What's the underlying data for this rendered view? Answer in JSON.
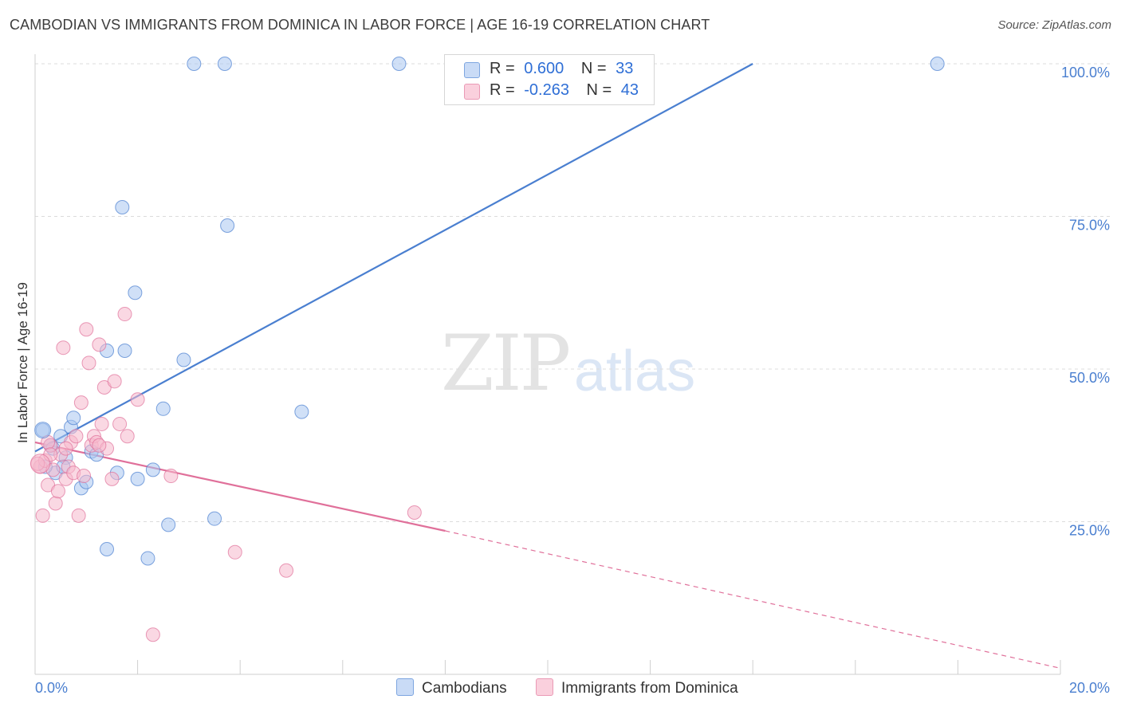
{
  "title": "CAMBODIAN VS IMMIGRANTS FROM DOMINICA IN LABOR FORCE | AGE 16-19 CORRELATION CHART",
  "source": "Source: ZipAtlas.com",
  "watermark": {
    "zip": "ZIP",
    "atlas": "atlas"
  },
  "legend": {
    "rows": [
      {
        "r_label": "R =",
        "r_value": "0.600",
        "n_label": "N =",
        "n_value": "33",
        "color": "#a9c6f0"
      },
      {
        "r_label": "R =",
        "r_value": "-0.263",
        "n_label": "N =",
        "n_value": "43",
        "color": "#f5b8cc"
      }
    ]
  },
  "bottom_legend": [
    "Cambodians",
    "Immigrants from Dominica"
  ],
  "chart_data": {
    "type": "scatter",
    "ylabel": "In Labor Force | Age 16-19",
    "xlim": [
      0,
      20
    ],
    "ylim": [
      0,
      100
    ],
    "x_ticks": [
      "0.0%",
      "20.0%"
    ],
    "y_ticks": [
      "25.0%",
      "50.0%",
      "75.0%",
      "100.0%"
    ],
    "y_tick_values": [
      25,
      50,
      75,
      100
    ],
    "series": [
      {
        "name": "Cambodians",
        "color": "#4a7fd0",
        "fill": "#a9c6f0",
        "points": [
          [
            0.15,
            40.0
          ],
          [
            0.3,
            37.5
          ],
          [
            0.35,
            37.0
          ],
          [
            0.4,
            33.0
          ],
          [
            0.5,
            39.0
          ],
          [
            0.6,
            35.5
          ],
          [
            0.7,
            40.5
          ],
          [
            0.75,
            42.0
          ],
          [
            0.9,
            30.5
          ],
          [
            1.0,
            31.5
          ],
          [
            1.1,
            36.5
          ],
          [
            1.2,
            36.0
          ],
          [
            1.4,
            20.5
          ],
          [
            1.4,
            53.0
          ],
          [
            1.6,
            33.0
          ],
          [
            1.7,
            76.5
          ],
          [
            1.75,
            53.0
          ],
          [
            1.95,
            62.5
          ],
          [
            2.0,
            32.0
          ],
          [
            2.2,
            19.0
          ],
          [
            2.3,
            33.5
          ],
          [
            2.5,
            43.5
          ],
          [
            2.6,
            24.5
          ],
          [
            2.9,
            51.5
          ],
          [
            3.1,
            100
          ],
          [
            3.5,
            25.5
          ],
          [
            3.7,
            100
          ],
          [
            3.75,
            73.5
          ],
          [
            5.2,
            43.0
          ],
          [
            7.1,
            100
          ],
          [
            17.6,
            100
          ],
          [
            0.2,
            34.0
          ],
          [
            0.55,
            34.0
          ]
        ],
        "trend": {
          "x0": 0,
          "y0": 36.5,
          "x1": 14.0,
          "y1": 100
        }
      },
      {
        "name": "Immigrants from Dominica",
        "color": "#e0709a",
        "fill": "#f5b8cc",
        "points": [
          [
            0.1,
            34.0
          ],
          [
            0.15,
            26.0
          ],
          [
            0.2,
            35.0
          ],
          [
            0.25,
            31.0
          ],
          [
            0.3,
            37.5
          ],
          [
            0.35,
            33.5
          ],
          [
            0.4,
            28.0
          ],
          [
            0.45,
            30.0
          ],
          [
            0.5,
            36.0
          ],
          [
            0.55,
            53.5
          ],
          [
            0.6,
            32.0
          ],
          [
            0.65,
            34.0
          ],
          [
            0.7,
            38.0
          ],
          [
            0.75,
            33.0
          ],
          [
            0.8,
            39.0
          ],
          [
            0.85,
            26.0
          ],
          [
            0.9,
            44.5
          ],
          [
            0.95,
            32.5
          ],
          [
            1.0,
            56.5
          ],
          [
            1.05,
            51.0
          ],
          [
            1.1,
            37.5
          ],
          [
            1.15,
            39.0
          ],
          [
            1.2,
            38.0
          ],
          [
            1.25,
            54.0
          ],
          [
            1.3,
            41.0
          ],
          [
            1.35,
            47.0
          ],
          [
            1.4,
            37.0
          ],
          [
            1.5,
            32.0
          ],
          [
            1.55,
            48.0
          ],
          [
            1.65,
            41.0
          ],
          [
            1.75,
            59.0
          ],
          [
            1.8,
            39.0
          ],
          [
            2.0,
            45.0
          ],
          [
            2.3,
            6.5
          ],
          [
            2.65,
            32.5
          ],
          [
            3.9,
            20.0
          ],
          [
            4.9,
            17.0
          ],
          [
            7.4,
            26.5
          ],
          [
            0.05,
            34.5
          ],
          [
            0.25,
            38.0
          ],
          [
            0.6,
            37.0
          ],
          [
            1.25,
            37.5
          ],
          [
            0.3,
            36.0
          ]
        ],
        "trend": {
          "x0": 0,
          "y0": 38.0,
          "x1": 8.0,
          "y1": 23.5
        },
        "trend_dashed": {
          "x0": 8.0,
          "y0": 23.5,
          "x1": 20.0,
          "y1": 1.0
        }
      }
    ]
  }
}
